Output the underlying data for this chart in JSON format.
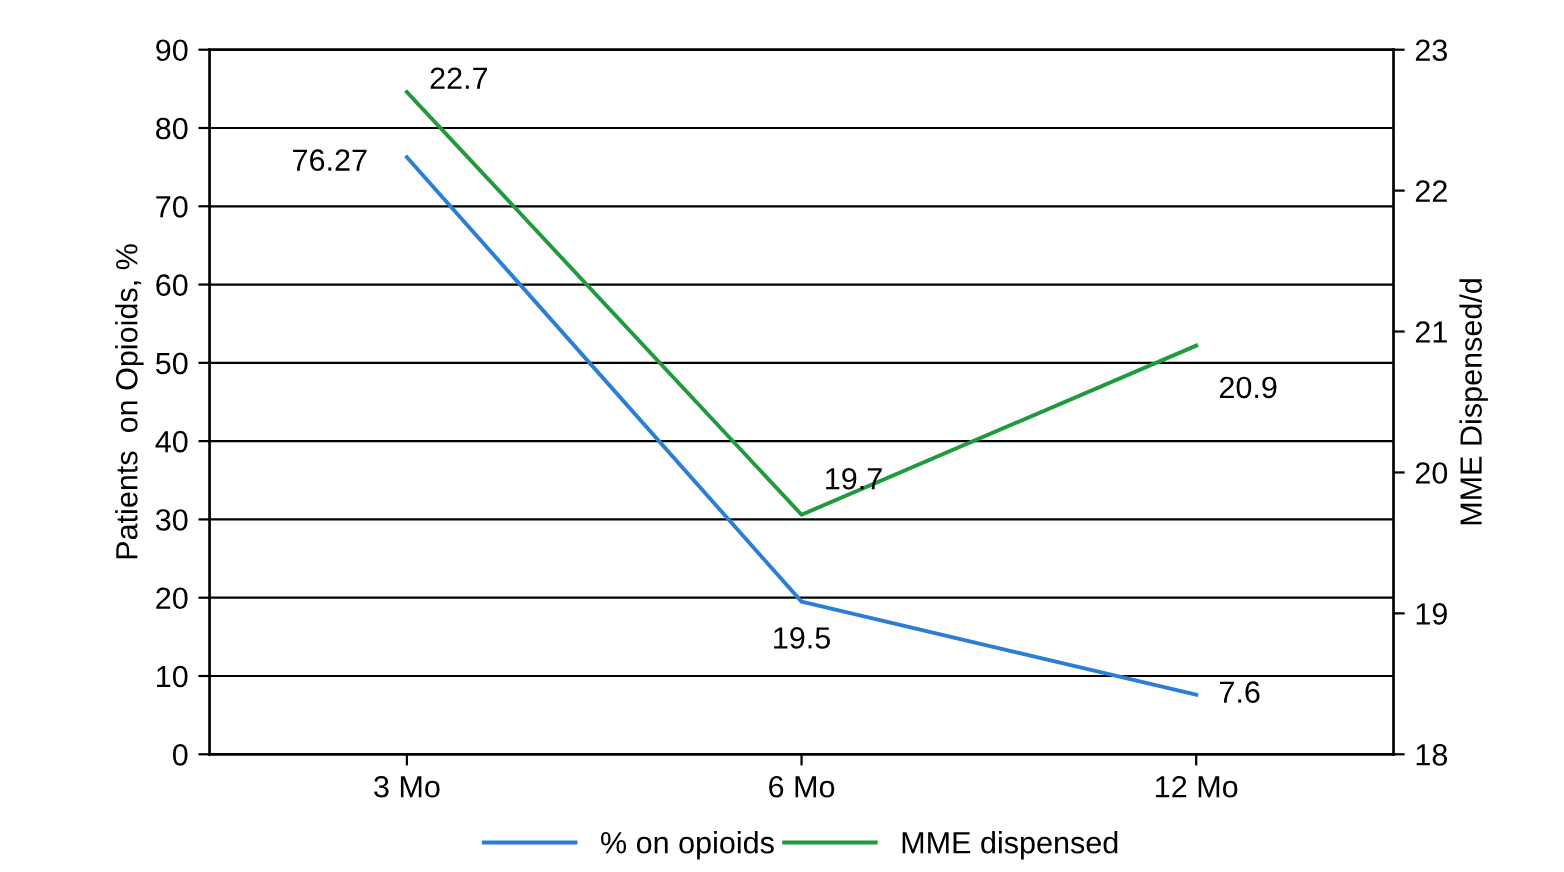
{
  "chart_data": {
    "type": "line",
    "categories": [
      "3 Mo",
      "6 Mo",
      "12 Mo"
    ],
    "series": [
      {
        "name": "% on opioids",
        "color": "#2a7fd4",
        "values": [
          76.27,
          19.5,
          7.6
        ]
      },
      {
        "name": "MME dispensed",
        "color": "#1f9a3c",
        "values": [
          22.7,
          19.7,
          20.9
        ],
        "axis": "y2"
      }
    ],
    "ylabel": "Patients  on Opioids, %",
    "y2label": "MME Dispensed/d",
    "ylim": [
      0,
      90
    ],
    "yticks": [
      0,
      10,
      20,
      30,
      40,
      50,
      60,
      70,
      80,
      90
    ],
    "y2lim": [
      18,
      23
    ],
    "y2ticks": [
      18,
      19,
      20,
      21,
      22,
      23
    ],
    "grid": "y",
    "legend": "bottom",
    "data_labels": true,
    "marker": "none",
    "line_style": "solid"
  }
}
